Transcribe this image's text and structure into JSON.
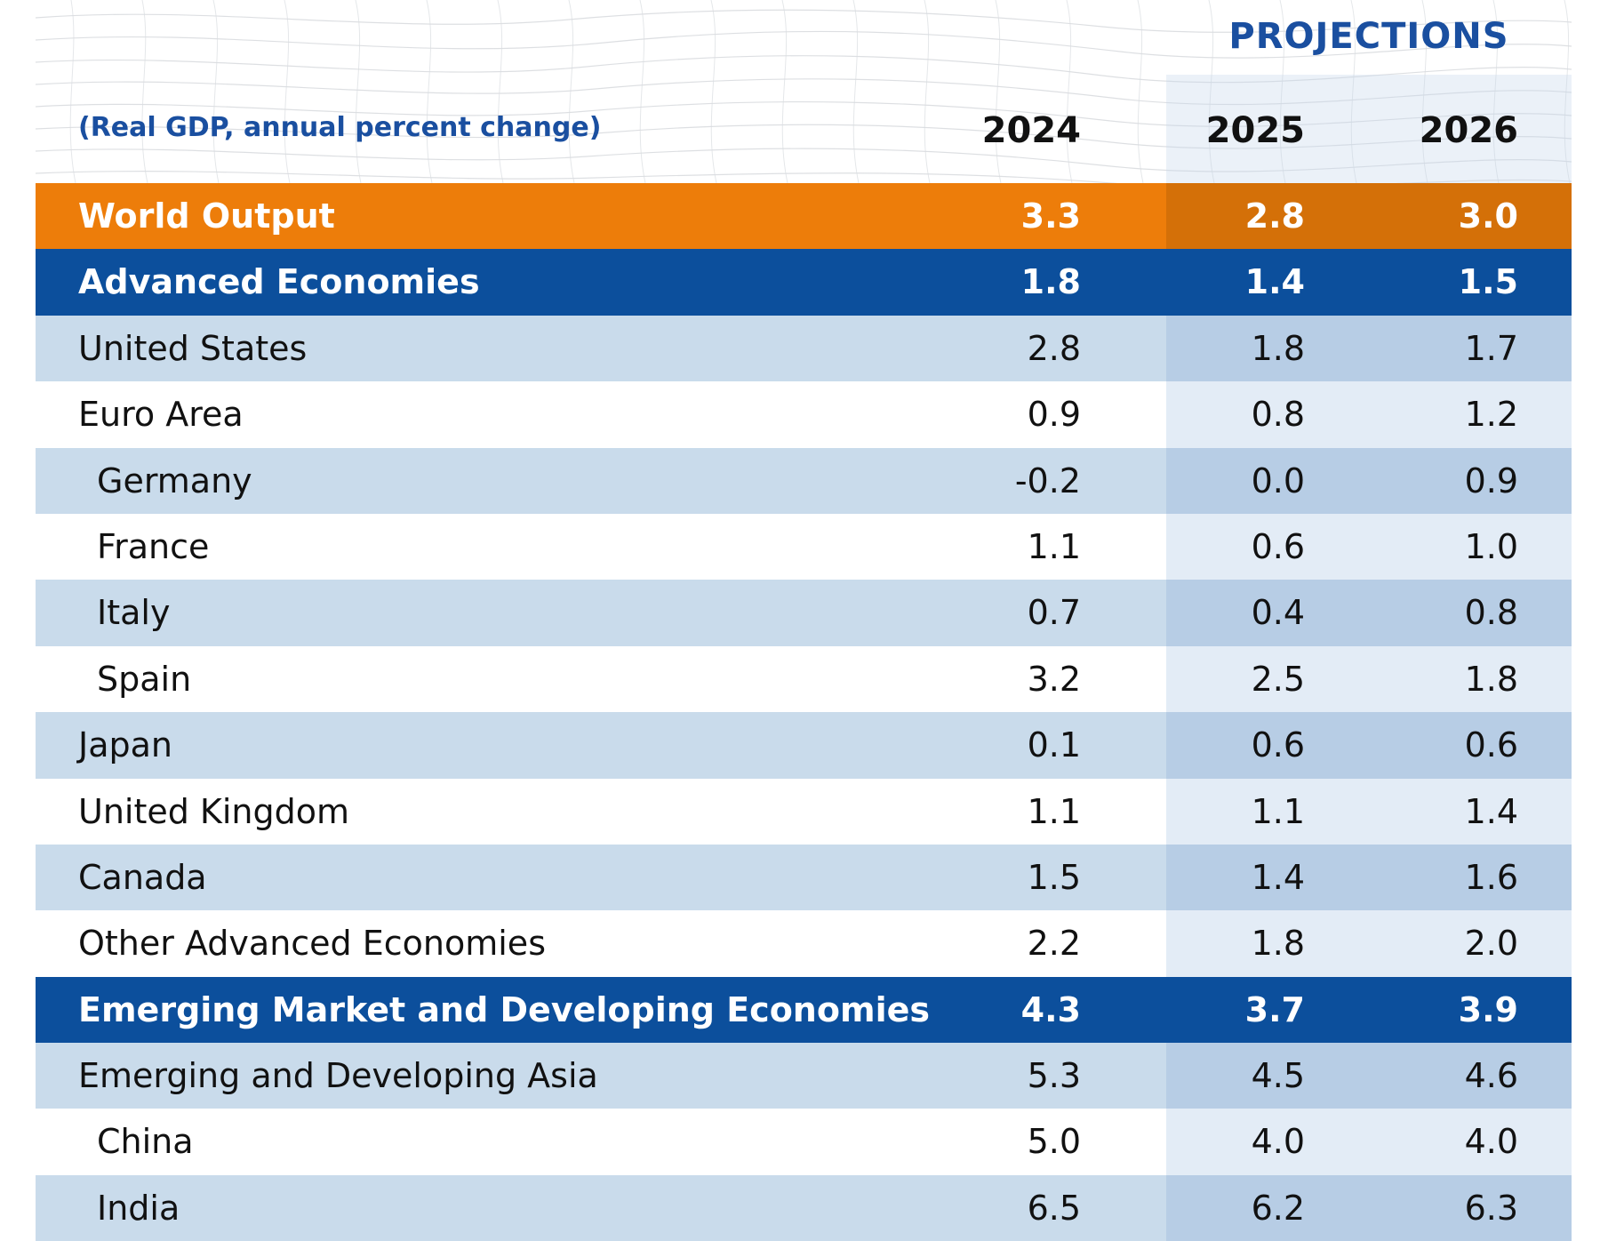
{
  "header": {
    "projections_label": "PROJECTIONS",
    "subtitle": "(Real GDP, annual percent change)",
    "years": [
      "2024",
      "2025",
      "2026"
    ]
  },
  "colors": {
    "orange": "#ed7d0a",
    "blue": "#0c4f9c",
    "light": "#c9dbeb",
    "title_blue": "#1a4fa0"
  },
  "chart_data": {
    "type": "table",
    "title": "PROJECTIONS",
    "subtitle": "(Real GDP, annual percent change)",
    "columns": [
      "2024",
      "2025",
      "2026"
    ],
    "rows": [
      {
        "label": "World Output",
        "values": [
          "3.3",
          "2.8",
          "3.0"
        ],
        "style": "orange",
        "indent": 0
      },
      {
        "label": "Advanced Economies",
        "values": [
          "1.8",
          "1.4",
          "1.5"
        ],
        "style": "blue",
        "indent": 0
      },
      {
        "label": "United States",
        "values": [
          "2.8",
          "1.8",
          "1.7"
        ],
        "style": "light",
        "indent": 0
      },
      {
        "label": "Euro Area",
        "values": [
          "0.9",
          "0.8",
          "1.2"
        ],
        "style": "white",
        "indent": 0
      },
      {
        "label": "Germany",
        "values": [
          "-0.2",
          "0.0",
          "0.9"
        ],
        "style": "light",
        "indent": 1
      },
      {
        "label": "France",
        "values": [
          "1.1",
          "0.6",
          "1.0"
        ],
        "style": "white",
        "indent": 1
      },
      {
        "label": "Italy",
        "values": [
          "0.7",
          "0.4",
          "0.8"
        ],
        "style": "light",
        "indent": 1
      },
      {
        "label": "Spain",
        "values": [
          "3.2",
          "2.5",
          "1.8"
        ],
        "style": "white",
        "indent": 1
      },
      {
        "label": "Japan",
        "values": [
          "0.1",
          "0.6",
          "0.6"
        ],
        "style": "light",
        "indent": 0
      },
      {
        "label": "United Kingdom",
        "values": [
          "1.1",
          "1.1",
          "1.4"
        ],
        "style": "white",
        "indent": 0
      },
      {
        "label": "Canada",
        "values": [
          "1.5",
          "1.4",
          "1.6"
        ],
        "style": "light",
        "indent": 0
      },
      {
        "label": "Other Advanced Economies",
        "values": [
          "2.2",
          "1.8",
          "2.0"
        ],
        "style": "white",
        "indent": 0
      },
      {
        "label": "Emerging Market and Developing Economies",
        "values": [
          "4.3",
          "3.7",
          "3.9"
        ],
        "style": "blue",
        "indent": 0
      },
      {
        "label": "Emerging and Developing Asia",
        "values": [
          "5.3",
          "4.5",
          "4.6"
        ],
        "style": "light",
        "indent": 0
      },
      {
        "label": "China",
        "values": [
          "5.0",
          "4.0",
          "4.0"
        ],
        "style": "white",
        "indent": 1
      },
      {
        "label": "India",
        "values": [
          "6.5",
          "6.2",
          "6.3"
        ],
        "style": "light",
        "indent": 1
      }
    ]
  }
}
